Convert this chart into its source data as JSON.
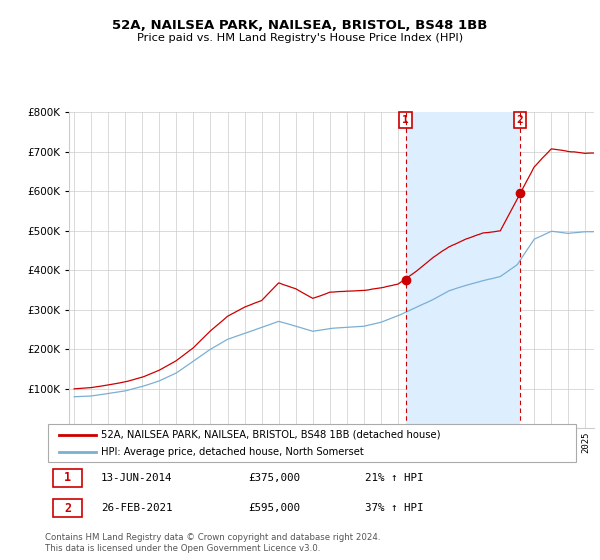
{
  "title1": "52A, NAILSEA PARK, NAILSEA, BRISTOL, BS48 1BB",
  "title2": "Price paid vs. HM Land Registry's House Price Index (HPI)",
  "legend_line1": "52A, NAILSEA PARK, NAILSEA, BRISTOL, BS48 1BB (detached house)",
  "legend_line2": "HPI: Average price, detached house, North Somerset",
  "marker1_label": "1",
  "marker1_date": "13-JUN-2014",
  "marker1_price": "£375,000",
  "marker1_hpi": "21% ↑ HPI",
  "marker1_year": 2014.45,
  "marker1_value": 375000,
  "marker2_label": "2",
  "marker2_date": "26-FEB-2021",
  "marker2_price": "£595,000",
  "marker2_hpi": "37% ↑ HPI",
  "marker2_year": 2021.15,
  "marker2_value": 595000,
  "footer1": "Contains HM Land Registry data © Crown copyright and database right 2024.",
  "footer2": "This data is licensed under the Open Government Licence v3.0.",
  "red_color": "#cc0000",
  "blue_color": "#7aafd4",
  "shade_color": "#ddeeff",
  "marker_color": "#cc0000",
  "background_color": "#ffffff",
  "grid_color": "#cccccc",
  "ylim": [
    0,
    800000
  ],
  "xlim_start": 1995.0,
  "xlim_end": 2025.5
}
